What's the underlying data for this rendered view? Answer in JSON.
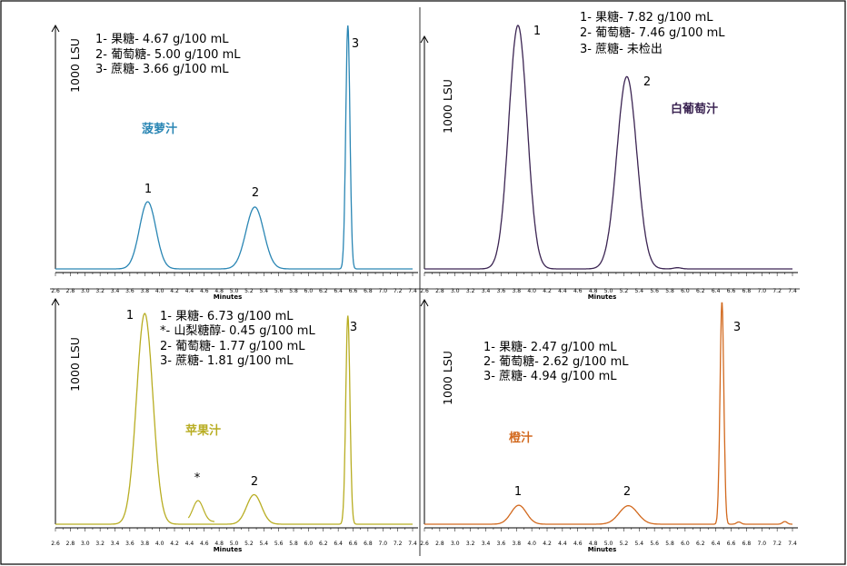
{
  "chart_data": [
    {
      "type": "line",
      "name_label": "菠萝汁",
      "color": "#2a86b4",
      "xlabel": "Minutes",
      "ylabel": "1000 LSU",
      "xlim": [
        2.6,
        7.4
      ],
      "x_ticks": [
        "2.6",
        "2.8",
        "3.0",
        "3.2",
        "3.4",
        "3.6",
        "3.8",
        "4.0",
        "4.2",
        "4.4",
        "4.6",
        "4.8",
        "5.0",
        "5.2",
        "5.4",
        "5.6",
        "5.8",
        "6.0",
        "6.2",
        "6.4",
        "6.6",
        "6.8",
        "7.0",
        "7.2",
        "7.4"
      ],
      "legend": [
        "1- 果糖- 4.67 g/100 mL",
        "2- 葡萄糖- 5.00 g/100 mL",
        "3- 蔗糖- 3.66 g/100 mL"
      ],
      "peaks": [
        {
          "label": "1",
          "x": 3.84,
          "height": 0.276,
          "sigma": 0.11
        },
        {
          "label": "2",
          "x": 5.28,
          "height": 0.254,
          "sigma": 0.12
        },
        {
          "label": "3",
          "x": 6.53,
          "height": 1.0,
          "sigma": 0.028
        }
      ]
    },
    {
      "type": "line",
      "name_label": "白葡萄汁",
      "color": "#3c2553",
      "xlabel": "Minutes",
      "ylabel": "1000 LSU",
      "xlim": [
        2.6,
        7.4
      ],
      "x_ticks": [
        "2.6",
        "2.8",
        "3.0",
        "3.2",
        "3.4",
        "3.6",
        "3.8",
        "4.0",
        "4.2",
        "4.4",
        "4.6",
        "4.8",
        "5.0",
        "5.2",
        "5.4",
        "5.6",
        "5.8",
        "6.0",
        "6.2",
        "6.4",
        "6.6",
        "6.8",
        "7.0",
        "7.2",
        "7.4"
      ],
      "legend": [
        "1- 果糖- 7.82 g/100 mL",
        "2- 葡萄糖- 7.46 g/100 mL",
        "3- 蔗糖- 未检出"
      ],
      "peaks": [
        {
          "label": "1",
          "x": 3.82,
          "height": 1.0,
          "sigma": 0.12
        },
        {
          "label": "2",
          "x": 5.24,
          "height": 0.79,
          "sigma": 0.13
        }
      ]
    },
    {
      "type": "line",
      "name_label": "苹果汁",
      "color": "#b8ad22",
      "xlabel": "Minutes",
      "ylabel": "1000 LSU",
      "xlim": [
        2.6,
        7.4
      ],
      "x_ticks": [
        "2.6",
        "2.8",
        "3.0",
        "3.2",
        "3.4",
        "3.6",
        "3.8",
        "4.0",
        "4.2",
        "4.4",
        "4.6",
        "4.8",
        "5.0",
        "5.2",
        "5.4",
        "5.6",
        "5.8",
        "6.0",
        "6.2",
        "6.4",
        "6.6",
        "6.8",
        "7.0",
        "7.2",
        "7.4"
      ],
      "legend": [
        "1- 果糖- 6.73 g/100 mL",
        "*- 山梨糖醇-  0.45 g/100 mL",
        "2- 葡萄糖- 1.77 g/100 mL",
        "3- 蔗糖- 1.81 g/100 mL"
      ],
      "peaks": [
        {
          "label": "1",
          "x": 3.8,
          "height": 1.0,
          "sigma": 0.11
        },
        {
          "label": "*",
          "x": 4.5,
          "height": 0.02,
          "sigma": 0.08
        },
        {
          "label": "2",
          "x": 5.27,
          "height": 0.14,
          "sigma": 0.1
        },
        {
          "label": "3",
          "x": 6.53,
          "height": 0.99,
          "sigma": 0.028
        }
      ],
      "inset": {
        "label": "*",
        "x_range": [
          4.35,
          4.7
        ],
        "height": 0.1
      }
    },
    {
      "type": "line",
      "name_label": "橙汁",
      "color": "#d2691e",
      "xlabel": "Minutes",
      "ylabel": "1000 LSU",
      "xlim": [
        2.6,
        7.4
      ],
      "x_ticks": [
        "2.6",
        "2.8",
        "3.0",
        "3.2",
        "3.4",
        "3.6",
        "3.8",
        "4.0",
        "4.2",
        "4.4",
        "4.6",
        "4.8",
        "5.0",
        "5.2",
        "5.4",
        "5.6",
        "5.8",
        "6.0",
        "6.2",
        "6.4",
        "6.6",
        "6.8",
        "7.0",
        "7.2",
        "7.4"
      ],
      "legend": [
        "1- 果糖- 2.47 g/100 mL",
        "2- 葡萄糖- 2.62 g/100 mL",
        "3- 蔗糖- 4.94 g/100 mL"
      ],
      "peaks": [
        {
          "label": "1",
          "x": 3.83,
          "height": 0.085,
          "sigma": 0.1
        },
        {
          "label": "2",
          "x": 5.26,
          "height": 0.083,
          "sigma": 0.12
        },
        {
          "label": "3",
          "x": 6.48,
          "height": 1.0,
          "sigma": 0.025
        }
      ]
    }
  ]
}
